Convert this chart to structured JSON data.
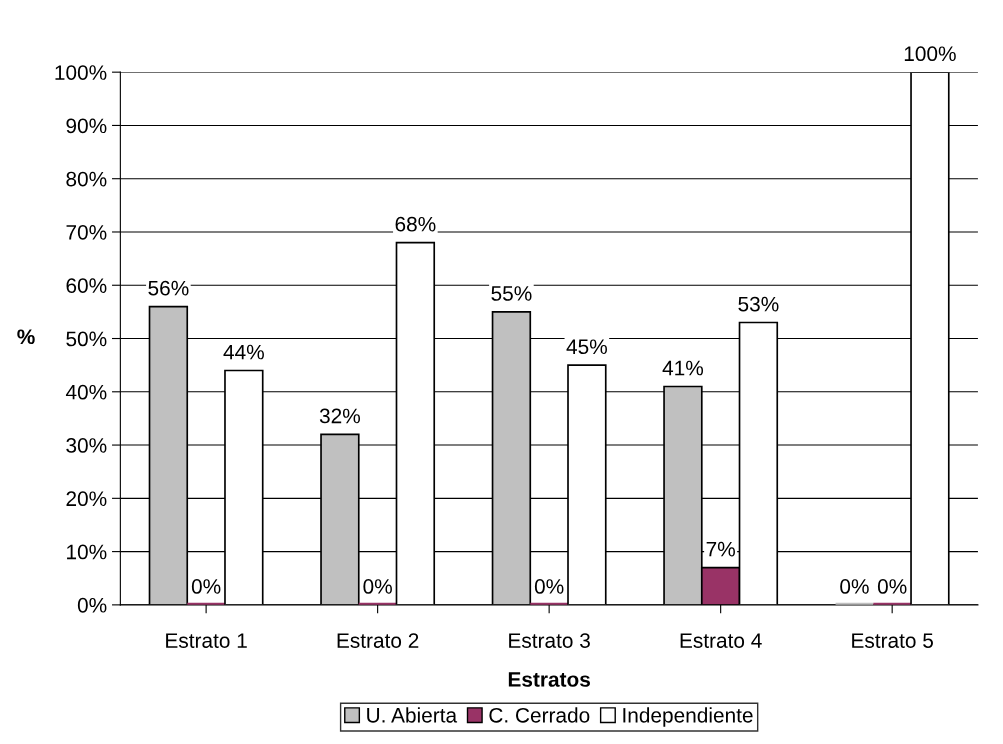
{
  "chart_data": {
    "type": "bar",
    "xlabel": "Estratos",
    "ylabel": "%",
    "categories": [
      "Estrato 1",
      "Estrato 2",
      "Estrato 3",
      "Estrato 4",
      "Estrato 5"
    ],
    "series": [
      {
        "name": "U. Abierta",
        "color": "#c0c0c0",
        "values": [
          56,
          32,
          55,
          41,
          0
        ],
        "value_labels": [
          "56%",
          "32%",
          "55%",
          "41%",
          "0%"
        ]
      },
      {
        "name": "C. Cerrado",
        "color": "#993366",
        "values": [
          0,
          0,
          0,
          7,
          0
        ],
        "value_labels": [
          "0%",
          "0%",
          "0%",
          "7%",
          "0%"
        ]
      },
      {
        "name": "Independiente",
        "color": "#ffffff",
        "values": [
          44,
          68,
          45,
          53,
          100
        ],
        "value_labels": [
          "44%",
          "68%",
          "45%",
          "53%",
          "100%"
        ]
      }
    ],
    "ylim": [
      0,
      100
    ],
    "yticks": [
      {
        "value": 0,
        "label": "0%"
      },
      {
        "value": 10,
        "label": "10%"
      },
      {
        "value": 20,
        "label": "20%"
      },
      {
        "value": 30,
        "label": "30%"
      },
      {
        "value": 40,
        "label": "40%"
      },
      {
        "value": 50,
        "label": "50%"
      },
      {
        "value": 60,
        "label": "60%"
      },
      {
        "value": 70,
        "label": "70%"
      },
      {
        "value": 80,
        "label": "80%"
      },
      {
        "value": 90,
        "label": "90%"
      },
      {
        "value": 100,
        "label": "100%"
      }
    ],
    "grid": "y",
    "legend": "bottom"
  }
}
